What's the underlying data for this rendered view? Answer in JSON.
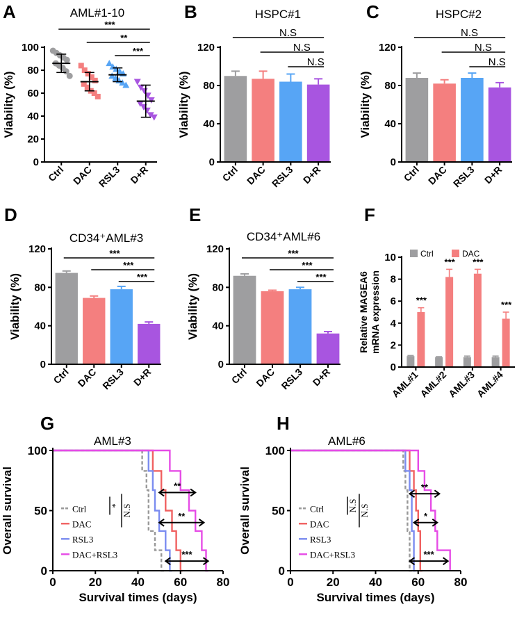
{
  "colors": {
    "ctrl": "#9e9ea0",
    "dac": "#f47f7f",
    "rsl3": "#57a5f5",
    "dr": "#a855e0",
    "dr_line": "#e64ce6",
    "dac_line": "#f06060",
    "rsl3_line": "#7b8cf0",
    "ctrl_line": "#999999"
  },
  "chart_data": [
    {
      "id": "A",
      "type": "scatter",
      "letter": "A",
      "title": "AML#1-10",
      "ylabel": "Viability (%)",
      "ylim": [
        0,
        100
      ],
      "yticks": [
        "0",
        "20",
        "40",
        "60",
        "80",
        "100"
      ],
      "categories": [
        "Ctrl",
        "DAC",
        "RSL3",
        "D+R"
      ],
      "means": [
        86,
        70,
        76,
        53
      ],
      "sd": [
        8,
        8,
        6,
        14
      ],
      "points": [
        [
          97,
          95,
          93,
          91,
          89,
          86,
          84,
          82,
          79,
          75
        ],
        [
          84,
          80,
          77,
          74,
          71,
          68,
          65,
          62,
          60,
          57
        ],
        [
          86,
          83,
          81,
          79,
          77,
          75,
          73,
          71,
          69,
          67
        ],
        [
          70,
          65,
          62,
          58,
          54,
          51,
          48,
          45,
          41,
          39
        ]
      ],
      "markers": [
        "circle",
        "square",
        "triangle",
        "down-triangle"
      ],
      "sig": [
        {
          "label": "***",
          "from": 0,
          "to": 3
        },
        {
          "label": "**",
          "from": 1,
          "to": 3
        },
        {
          "label": "***",
          "from": 2,
          "to": 3
        }
      ]
    },
    {
      "id": "B",
      "type": "bar",
      "letter": "B",
      "title": "HSPC#1",
      "ylabel": "Viability (%)",
      "ylim": [
        0,
        120
      ],
      "yticks": [
        "0",
        "40",
        "80",
        "120"
      ],
      "categories": [
        "Ctrl",
        "DAC",
        "RSL3",
        "D+R"
      ],
      "values": [
        90,
        87,
        84,
        81
      ],
      "errors": [
        5,
        8,
        8,
        6
      ],
      "sig": [
        {
          "label": "N.S",
          "from": 0,
          "to": 3
        },
        {
          "label": "N.S",
          "from": 1,
          "to": 3
        },
        {
          "label": "N.S",
          "from": 2,
          "to": 3
        }
      ]
    },
    {
      "id": "C",
      "type": "bar",
      "letter": "C",
      "title": "HSPC#2",
      "ylabel": "Viability (%)",
      "ylim": [
        0,
        120
      ],
      "yticks": [
        "0",
        "40",
        "80",
        "120"
      ],
      "categories": [
        "Ctrl",
        "DAC",
        "RSL3",
        "D+R"
      ],
      "values": [
        88,
        82,
        88,
        78
      ],
      "errors": [
        5,
        4,
        5,
        5
      ],
      "sig": [
        {
          "label": "N.S",
          "from": 0,
          "to": 3
        },
        {
          "label": "N.S",
          "from": 1,
          "to": 3
        },
        {
          "label": "N.S",
          "from": 2,
          "to": 3
        }
      ]
    },
    {
      "id": "D",
      "type": "bar",
      "letter": "D",
      "title": "CD34⁺AML#3",
      "ylabel": "Viability (%)",
      "ylim": [
        0,
        120
      ],
      "yticks": [
        "0",
        "40",
        "80",
        "120"
      ],
      "categories": [
        "Ctrl",
        "DAC",
        "RSL3",
        "D+R"
      ],
      "values": [
        95,
        69,
        78,
        42
      ],
      "errors": [
        2,
        2,
        3,
        2
      ],
      "sig": [
        {
          "label": "***",
          "from": 0,
          "to": 3
        },
        {
          "label": "***",
          "from": 1,
          "to": 3
        },
        {
          "label": "***",
          "from": 2,
          "to": 3
        }
      ]
    },
    {
      "id": "E",
      "type": "bar",
      "letter": "E",
      "title": "CD34⁺AML#6",
      "ylabel": "Viability (%)",
      "ylim": [
        0,
        120
      ],
      "yticks": [
        "0",
        "40",
        "80",
        "120"
      ],
      "categories": [
        "Ctrl",
        "DAC",
        "RSL3",
        "D+R"
      ],
      "values": [
        92,
        76,
        78,
        32
      ],
      "errors": [
        2,
        1,
        2,
        2
      ],
      "sig": [
        {
          "label": "***",
          "from": 0,
          "to": 3
        },
        {
          "label": "***",
          "from": 1,
          "to": 3
        },
        {
          "label": "***",
          "from": 2,
          "to": 3
        }
      ]
    },
    {
      "id": "F",
      "type": "bar",
      "letter": "F",
      "ylabel": "Relative MAGEA6",
      "ylabel2": "mRNA expression",
      "ylim": [
        0,
        10
      ],
      "yticks": [
        "0",
        "2",
        "4",
        "6",
        "8",
        "10"
      ],
      "categories": [
        "AML#1",
        "AML#2",
        "AML#3",
        "AML#4"
      ],
      "series": [
        {
          "name": "Ctrl",
          "values": [
            1.0,
            0.9,
            0.9,
            0.9
          ],
          "errors": [
            0.05,
            0.05,
            0.1,
            0.1
          ]
        },
        {
          "name": "DAC",
          "values": [
            5.0,
            8.2,
            8.5,
            4.4
          ],
          "errors": [
            0.4,
            0.7,
            0.4,
            0.6
          ]
        }
      ],
      "sig": [
        "***",
        "***",
        "***",
        "***"
      ]
    },
    {
      "id": "G",
      "type": "line",
      "letter": "G",
      "title": "AML#3",
      "xlabel": "Survival times (days)",
      "ylabel": "Overall survival",
      "xlim": [
        0,
        80
      ],
      "ylim": [
        0,
        100
      ],
      "xticks": [
        "0",
        "20",
        "40",
        "60",
        "80"
      ],
      "yticks": [
        "0",
        "50",
        "100"
      ],
      "series": [
        {
          "name": "Ctrl",
          "steps": [
            [
              0,
              100
            ],
            [
              42,
              100
            ],
            [
              42,
              83
            ],
            [
              44,
              83
            ],
            [
              44,
              67
            ],
            [
              45,
              67
            ],
            [
              45,
              33
            ],
            [
              48,
              33
            ],
            [
              48,
              17
            ],
            [
              51,
              17
            ],
            [
              51,
              0
            ],
            [
              53,
              0
            ]
          ]
        },
        {
          "name": "DAC",
          "steps": [
            [
              0,
              100
            ],
            [
              47,
              100
            ],
            [
              47,
              83
            ],
            [
              51,
              83
            ],
            [
              51,
              67
            ],
            [
              53,
              67
            ],
            [
              53,
              50
            ],
            [
              56,
              50
            ],
            [
              56,
              33
            ],
            [
              58,
              33
            ],
            [
              58,
              17
            ],
            [
              60,
              17
            ],
            [
              60,
              0
            ],
            [
              61,
              0
            ]
          ]
        },
        {
          "name": "RSL3",
          "steps": [
            [
              0,
              100
            ],
            [
              45,
              100
            ],
            [
              45,
              83
            ],
            [
              47,
              83
            ],
            [
              47,
              67
            ],
            [
              48,
              67
            ],
            [
              48,
              50
            ],
            [
              50,
              50
            ],
            [
              50,
              33
            ],
            [
              53,
              33
            ],
            [
              53,
              17
            ],
            [
              55,
              17
            ],
            [
              55,
              0
            ],
            [
              56,
              0
            ]
          ]
        },
        {
          "name": "DAC+RSL3",
          "steps": [
            [
              0,
              100
            ],
            [
              55,
              100
            ],
            [
              55,
              83
            ],
            [
              60,
              83
            ],
            [
              60,
              67
            ],
            [
              64,
              67
            ],
            [
              64,
              50
            ],
            [
              67,
              50
            ],
            [
              67,
              33
            ],
            [
              70,
              33
            ],
            [
              70,
              17
            ],
            [
              72,
              17
            ],
            [
              72,
              0
            ],
            [
              73,
              0
            ]
          ]
        }
      ],
      "sig": [
        {
          "label": "**",
          "from": 50,
          "to": 67,
          "y": 65
        },
        {
          "label": "**",
          "from": 50,
          "to": 71,
          "y": 40
        },
        {
          "label": "***",
          "from": 53,
          "to": 73,
          "y": 8
        },
        {
          "label": "*",
          "y": 50
        },
        {
          "label": "N.S",
          "y": 50
        }
      ]
    },
    {
      "id": "H",
      "type": "line",
      "letter": "H",
      "title": "AML#6",
      "xlabel": "Survival times (days)",
      "ylabel": "Overall survival",
      "xlim": [
        0,
        80
      ],
      "ylim": [
        0,
        100
      ],
      "xticks": [
        "0",
        "20",
        "40",
        "60",
        "80"
      ],
      "yticks": [
        "0",
        "50",
        "100"
      ],
      "series": [
        {
          "name": "Ctrl",
          "steps": [
            [
              0,
              100
            ],
            [
              53,
              100
            ],
            [
              53,
              83
            ],
            [
              54,
              83
            ],
            [
              54,
              67
            ],
            [
              55,
              67
            ],
            [
              55,
              33
            ],
            [
              56,
              33
            ],
            [
              56,
              0
            ],
            [
              57,
              0
            ]
          ]
        },
        {
          "name": "DAC",
          "steps": [
            [
              0,
              100
            ],
            [
              56,
              100
            ],
            [
              56,
              83
            ],
            [
              58,
              83
            ],
            [
              58,
              67
            ],
            [
              59,
              67
            ],
            [
              59,
              50
            ],
            [
              60,
              50
            ],
            [
              60,
              33
            ],
            [
              61,
              33
            ],
            [
              61,
              0
            ],
            [
              62,
              0
            ]
          ]
        },
        {
          "name": "RSL3",
          "steps": [
            [
              0,
              100
            ],
            [
              54,
              100
            ],
            [
              54,
              83
            ],
            [
              56,
              83
            ],
            [
              56,
              67
            ],
            [
              57,
              67
            ],
            [
              57,
              33
            ],
            [
              58,
              33
            ],
            [
              58,
              0
            ],
            [
              59,
              0
            ]
          ]
        },
        {
          "name": "DAC+RSL3",
          "steps": [
            [
              0,
              100
            ],
            [
              60,
              100
            ],
            [
              60,
              83
            ],
            [
              63,
              83
            ],
            [
              63,
              67
            ],
            [
              66,
              67
            ],
            [
              66,
              50
            ],
            [
              68,
              50
            ],
            [
              68,
              33
            ],
            [
              69,
              33
            ],
            [
              69,
              17
            ],
            [
              75,
              17
            ],
            [
              75,
              0
            ]
          ]
        }
      ],
      "sig": [
        {
          "label": "**",
          "from": 56,
          "to": 70,
          "y": 64
        },
        {
          "label": "*",
          "from": 58,
          "to": 69,
          "y": 40
        },
        {
          "label": "***",
          "from": 56,
          "to": 74,
          "y": 8
        },
        {
          "label": "N.S",
          "y": 50
        },
        {
          "label": "N.S",
          "y": 50
        }
      ]
    }
  ]
}
